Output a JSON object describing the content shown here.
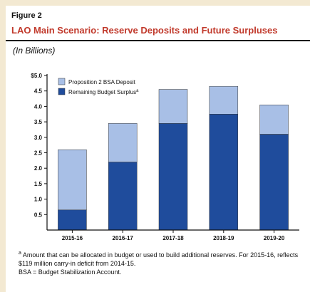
{
  "figure": {
    "label": "Figure 2",
    "title": "LAO Main Scenario: Reserve Deposits and Future Surpluses",
    "units": "(In Billions)"
  },
  "footnotes": {
    "a_marker": "a",
    "a_text": "Amount that can be allocated in budget or used to build additional reserves. For 2015-16, reflects $119 million carry-in deficit from 2014-15.",
    "bsa": "BSA = Budget Stabilization Account."
  },
  "colors": {
    "deposit": "#a8bfe6",
    "surplus": "#1f4c9c",
    "title": "#c1392b"
  },
  "chart_data": {
    "type": "bar",
    "stacked": true,
    "categories": [
      "2015-16",
      "2016-17",
      "2017-18",
      "2018-19",
      "2019-20"
    ],
    "y_tick_labels": [
      "$5.0",
      "4.5",
      "4.0",
      "3.5",
      "3.0",
      "2.5",
      "2.0",
      "1.5",
      "1.0",
      "0.5"
    ],
    "ylim": [
      0,
      5
    ],
    "legend_position": "top-left",
    "series": [
      {
        "name": "Remaining Budget Surplus",
        "legend_label": "Remaining Budget Surplus",
        "legend_sup": "a",
        "values": [
          0.65,
          2.2,
          3.45,
          3.75,
          3.1
        ]
      },
      {
        "name": "Proposition 2 BSA Deposit",
        "legend_label": "Proposition 2 BSA Deposit",
        "values": [
          1.95,
          1.25,
          1.1,
          0.9,
          0.95
        ]
      }
    ]
  }
}
